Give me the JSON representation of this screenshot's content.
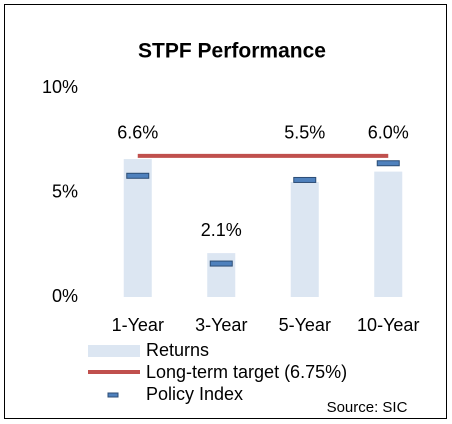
{
  "chart_data": {
    "type": "bar",
    "title": "STPF Performance",
    "categories": [
      "1-Year",
      "3-Year",
      "5-Year",
      "10-Year"
    ],
    "series": [
      {
        "name": "Returns",
        "color": "#dce6f2",
        "values": [
          6.6,
          2.1,
          5.5,
          6.0
        ],
        "value_labels": [
          "6.6%",
          "2.1%",
          "5.5%",
          "6.0%"
        ]
      },
      {
        "name": "Long-term target (6.75%)",
        "color": "#c0504d",
        "value": 6.75
      },
      {
        "name": "Policy Index",
        "color": "#4f81bd",
        "values": [
          5.8,
          1.6,
          5.6,
          6.4
        ]
      }
    ],
    "ylim": [
      0,
      10
    ],
    "yticks": [
      {
        "value": 0,
        "label": "0%"
      },
      {
        "value": 5,
        "label": "5%"
      },
      {
        "value": 10,
        "label": "10%"
      }
    ],
    "source": "Source: SIC"
  }
}
